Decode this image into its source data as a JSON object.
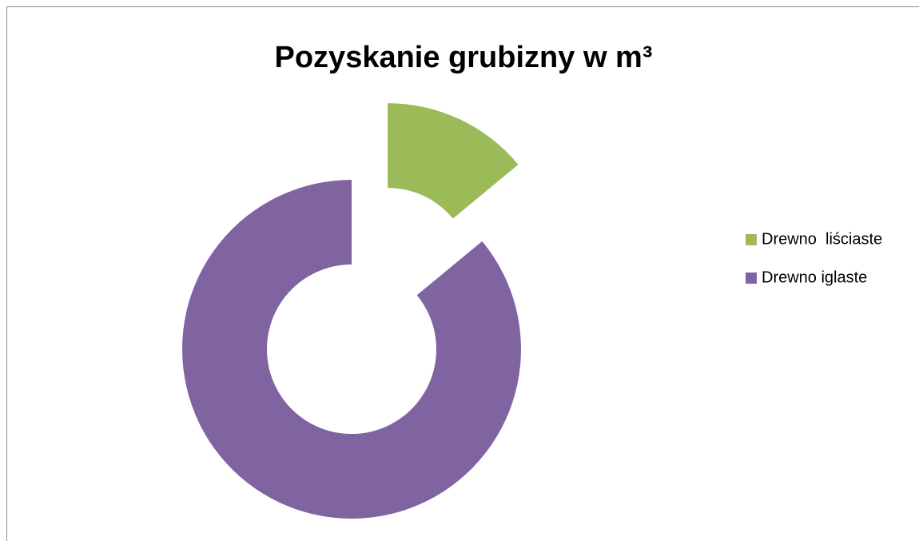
{
  "chart_data": {
    "type": "donut",
    "title": "Pozyskanie grubizny w m³",
    "categories": [
      "Drewno  liściaste",
      "Drewno iglaste"
    ],
    "values": [
      14,
      86
    ],
    "colors": [
      "#9bbb59",
      "#8064a2"
    ],
    "legend": "right"
  }
}
